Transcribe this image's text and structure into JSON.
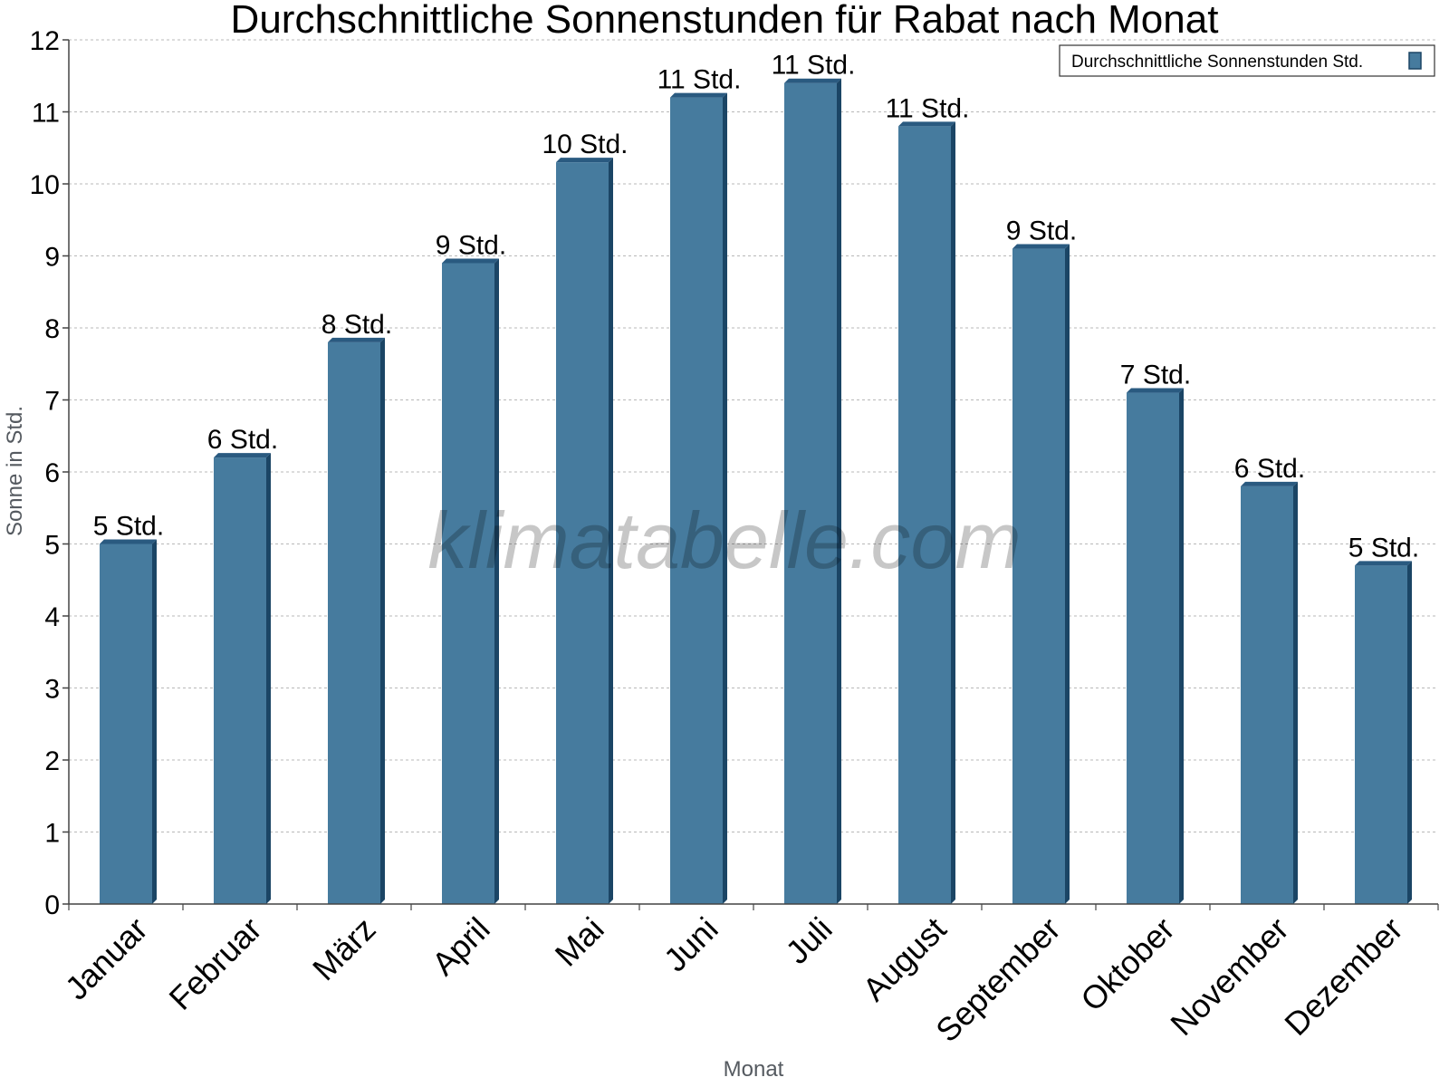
{
  "chart_data": {
    "type": "bar",
    "title": "Durchschnittliche Sonnenstunden für Rabat nach Monat",
    "xlabel": "Monat",
    "ylabel": "Sonne in Std.",
    "ylim": [
      0,
      12
    ],
    "yticks": [
      0,
      1,
      2,
      3,
      4,
      5,
      6,
      7,
      8,
      9,
      10,
      11,
      12
    ],
    "grid": true,
    "legend_position": "top-right",
    "categories": [
      "Januar",
      "Februar",
      "März",
      "April",
      "Mai",
      "Juni",
      "Juli",
      "August",
      "September",
      "Oktober",
      "November",
      "Dezember"
    ],
    "series": [
      {
        "name": "Durchschnittliche Sonnenstunden Std.",
        "values": [
          5.0,
          6.2,
          7.8,
          8.9,
          10.3,
          11.2,
          11.4,
          10.8,
          9.1,
          7.1,
          5.8,
          4.7
        ],
        "labels": [
          "5 Std.",
          "6 Std.",
          "8 Std.",
          "9 Std.",
          "10 Std.",
          "11 Std.",
          "11 Std.",
          "11 Std.",
          "9 Std.",
          "7 Std.",
          "6 Std.",
          "5 Std."
        ],
        "color": "#467b9e",
        "side_color": "#1b4565",
        "top_color": "#2a5a80"
      }
    ],
    "watermark": "klimatabelle.com"
  }
}
